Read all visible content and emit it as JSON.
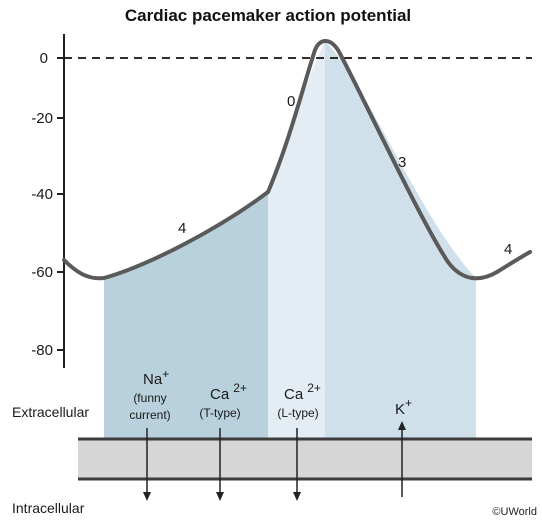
{
  "title": "Cardiac pacemaker action potential",
  "y_axis": {
    "ticks": [
      "0",
      "-20",
      "-40",
      "-60",
      "-80"
    ]
  },
  "phases": {
    "phase4_left": "4",
    "phase0": "0",
    "phase3": "3",
    "phase4_right": "4"
  },
  "ions": {
    "na": {
      "symbol": "Na",
      "charge": "+",
      "line1": "(funny",
      "line2": "current)"
    },
    "ca_t": {
      "symbol": "Ca",
      "charge": "2+",
      "line1": "(T-type)"
    },
    "ca_l": {
      "symbol": "Ca",
      "charge": "2+",
      "line1": "(L-type)"
    },
    "k": {
      "symbol": "K",
      "charge": "+"
    }
  },
  "membrane": {
    "extracellular": "Extracellular",
    "intracellular": "Intracellular"
  },
  "copyright": "©UWorld",
  "colors": {
    "region_funny_t": "#b9d1dd",
    "region_l": "#e4edf3",
    "region_k": "#cfe0ea",
    "curve": "#5a5a5a",
    "membrane_fill": "#d6d6d6",
    "membrane_line": "#3c3c3c"
  }
}
